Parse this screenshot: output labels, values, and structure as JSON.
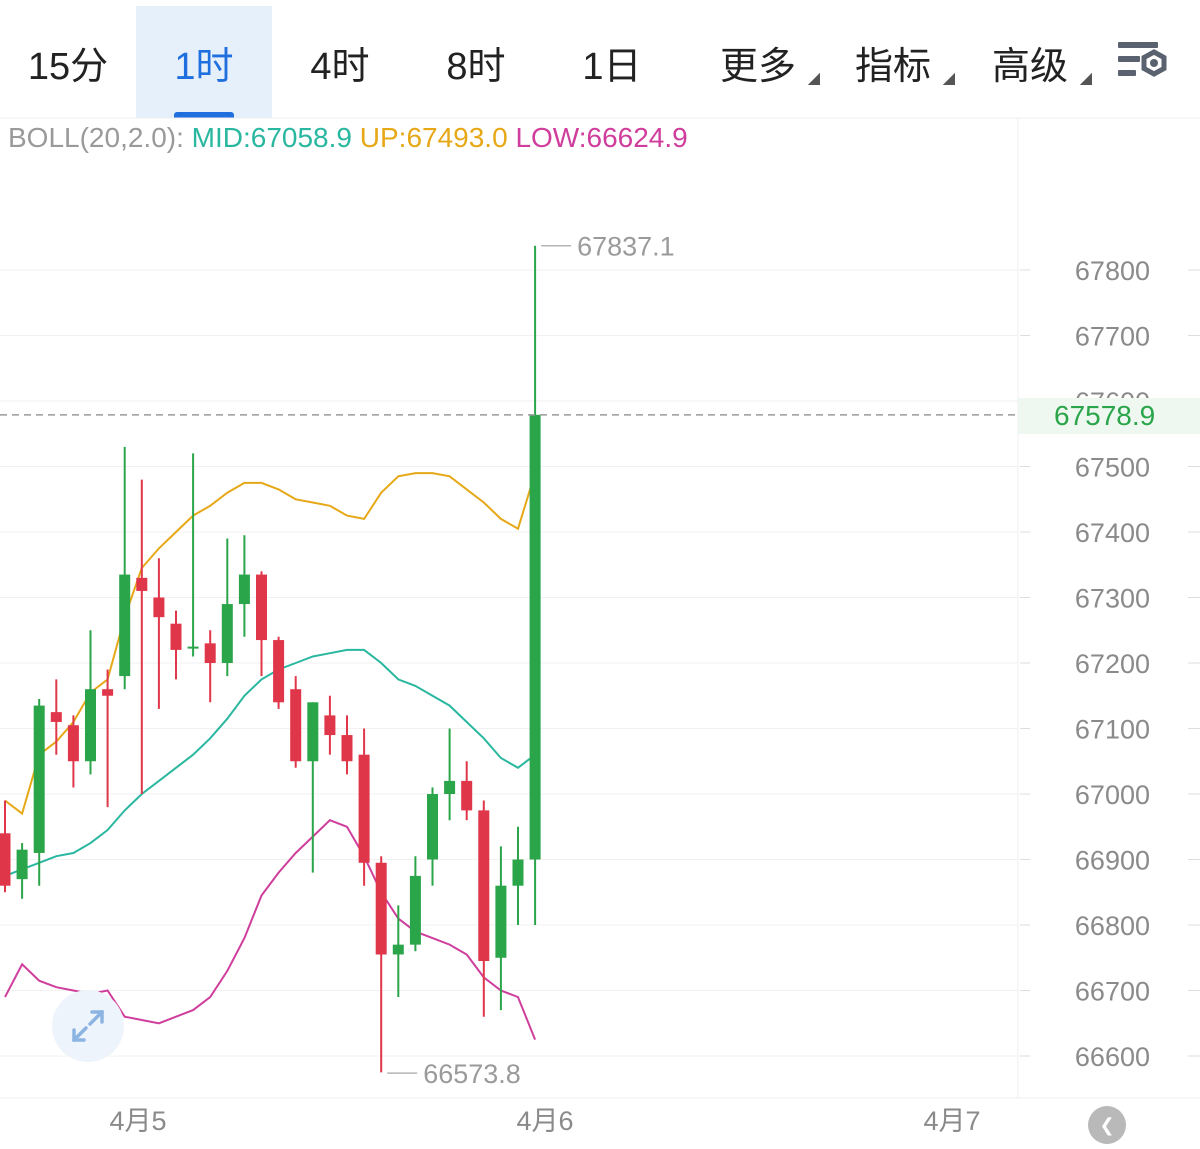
{
  "tabs": [
    {
      "label": "15分",
      "active": false,
      "dropdown": false
    },
    {
      "label": "1时",
      "active": true,
      "dropdown": false
    },
    {
      "label": "4时",
      "active": false,
      "dropdown": false
    },
    {
      "label": "8时",
      "active": false,
      "dropdown": false
    },
    {
      "label": "1日",
      "active": false,
      "dropdown": false
    },
    {
      "label": "更多",
      "active": false,
      "dropdown": true
    },
    {
      "label": "指标",
      "active": false,
      "dropdown": true
    },
    {
      "label": "高级",
      "active": false,
      "dropdown": true
    }
  ],
  "settings_icon": "chart-settings-icon",
  "indicator": {
    "label": "BOLL(20,2.0):",
    "mid": "MID:67058.9",
    "up": "UP:67493.0",
    "low": "LOW:66624.9"
  },
  "colors": {
    "up_candle": "#2aa54a",
    "down_candle": "#e0364a",
    "boll_mid": "#2ab7a0",
    "boll_up": "#e6a817",
    "boll_low": "#cf3e9c",
    "accent": "#1f6fde"
  },
  "chart_data": {
    "type": "candlestick",
    "y_axis_ticks": [
      67800,
      67700,
      67600,
      67500,
      67400,
      67300,
      67200,
      67100,
      67000,
      66900,
      66800,
      66700,
      66600
    ],
    "x_axis_labels": [
      "4月5",
      "4月6",
      "4月7"
    ],
    "current_price": "67578.9",
    "high_label": "67837.1",
    "low_label": "66573.8",
    "candles": [
      {
        "o": 66940,
        "h": 66990,
        "c": 66860,
        "l": 66850
      },
      {
        "o": 66870,
        "h": 66925,
        "c": 66915,
        "l": 66840
      },
      {
        "o": 66910,
        "h": 67145,
        "c": 67135,
        "l": 66860
      },
      {
        "o": 67125,
        "h": 67175,
        "c": 67110,
        "l": 67060
      },
      {
        "o": 67105,
        "h": 67120,
        "c": 67050,
        "l": 67010
      },
      {
        "o": 67050,
        "h": 67250,
        "c": 67160,
        "l": 67030
      },
      {
        "o": 67160,
        "h": 67190,
        "c": 67150,
        "l": 66980
      },
      {
        "o": 67180,
        "h": 67530,
        "c": 67335,
        "l": 67160
      },
      {
        "o": 67330,
        "h": 67480,
        "c": 67310,
        "l": 67000
      },
      {
        "o": 67300,
        "h": 67360,
        "c": 67270,
        "l": 67130
      },
      {
        "o": 67260,
        "h": 67280,
        "c": 67220,
        "l": 67175
      },
      {
        "o": 67225,
        "h": 67520,
        "c": 67225,
        "l": 67210
      },
      {
        "o": 67230,
        "h": 67250,
        "c": 67200,
        "l": 67140
      },
      {
        "o": 67200,
        "h": 67390,
        "c": 67290,
        "l": 67180
      },
      {
        "o": 67290,
        "h": 67395,
        "c": 67335,
        "l": 67240
      },
      {
        "o": 67335,
        "h": 67340,
        "c": 67235,
        "l": 67180
      },
      {
        "o": 67235,
        "h": 67240,
        "c": 67140,
        "l": 67130
      },
      {
        "o": 67160,
        "h": 67180,
        "c": 67050,
        "l": 67040
      },
      {
        "o": 67050,
        "h": 67140,
        "c": 67140,
        "l": 66880
      },
      {
        "o": 67120,
        "h": 67150,
        "c": 67090,
        "l": 67060
      },
      {
        "o": 67090,
        "h": 67120,
        "c": 67050,
        "l": 67030
      },
      {
        "o": 67060,
        "h": 67100,
        "c": 66895,
        "l": 66860
      },
      {
        "o": 66895,
        "h": 66905,
        "c": 66755,
        "l": 66575
      },
      {
        "o": 66755,
        "h": 66830,
        "c": 66770,
        "l": 66690
      },
      {
        "o": 66770,
        "h": 66905,
        "c": 66875,
        "l": 66760
      },
      {
        "o": 66900,
        "h": 67010,
        "c": 67000,
        "l": 66860
      },
      {
        "o": 67000,
        "h": 67100,
        "c": 67020,
        "l": 66960
      },
      {
        "o": 67020,
        "h": 67050,
        "c": 66975,
        "l": 66960
      },
      {
        "o": 66975,
        "h": 66990,
        "c": 66745,
        "l": 66660
      },
      {
        "o": 66750,
        "h": 66920,
        "c": 66860,
        "l": 66670
      },
      {
        "o": 66860,
        "h": 66950,
        "c": 66900,
        "l": 66800
      },
      {
        "o": 66900,
        "h": 67837.1,
        "c": 67578.9,
        "l": 66800
      }
    ],
    "boll_up": [
      66990,
      66970,
      67060,
      67080,
      67110,
      67155,
      67175,
      67270,
      67345,
      67375,
      67400,
      67425,
      67440,
      67460,
      67475,
      67475,
      67465,
      67450,
      67445,
      67440,
      67425,
      67420,
      67460,
      67485,
      67490,
      67490,
      67485,
      67465,
      67445,
      67420,
      67405,
      67490
    ],
    "boll_mid": [
      66875,
      66885,
      66895,
      66905,
      66910,
      66925,
      66945,
      66975,
      67000,
      67020,
      67040,
      67060,
      67085,
      67115,
      67150,
      67175,
      67190,
      67200,
      67210,
      67215,
      67220,
      67220,
      67200,
      67175,
      67165,
      67150,
      67135,
      67110,
      67085,
      67055,
      67040,
      67060
    ],
    "boll_low": [
      66690,
      66740,
      66715,
      66705,
      66700,
      66695,
      66700,
      66660,
      66655,
      66650,
      66660,
      66670,
      66690,
      66730,
      66780,
      66845,
      66880,
      66910,
      66935,
      66960,
      66950,
      66905,
      66850,
      66810,
      66790,
      66780,
      66770,
      66755,
      66720,
      66700,
      66690,
      66625
    ]
  }
}
